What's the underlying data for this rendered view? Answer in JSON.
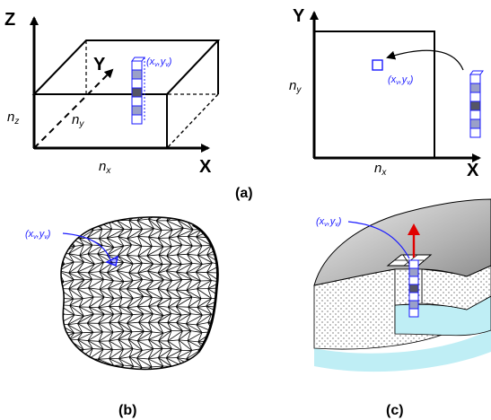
{
  "panel_a": {
    "box_axis_z": "Z",
    "box_axis_y": "Y",
    "box_axis_x": "X",
    "box_dim_nz": "n",
    "box_dim_nz_sub": "z",
    "box_dim_ny": "n",
    "box_dim_ny_sub": "y",
    "box_dim_nx": "n",
    "box_dim_nx_sub": "x",
    "box_column_label": "(x",
    "plane_axis_y": "Y",
    "plane_axis_x": "X",
    "plane_dim_ny": "n",
    "plane_dim_ny_sub": "y",
    "plane_dim_nx": "n",
    "plane_dim_nx_sub": "x",
    "plane_point_label": "(x",
    "caption": "(a)"
  },
  "panel_b": {
    "point_label": "(x",
    "caption": "(b)"
  },
  "panel_c": {
    "point_label": "(x",
    "caption": "(c)"
  },
  "colors": {
    "accent_blue": "#1a1aff",
    "column_fill": "#9aa0c8",
    "column_dark": "#555566",
    "arrow_red": "#e00000",
    "ocean_cyan": "#bfeef5",
    "terrain_gray": "#bcbcbc"
  }
}
